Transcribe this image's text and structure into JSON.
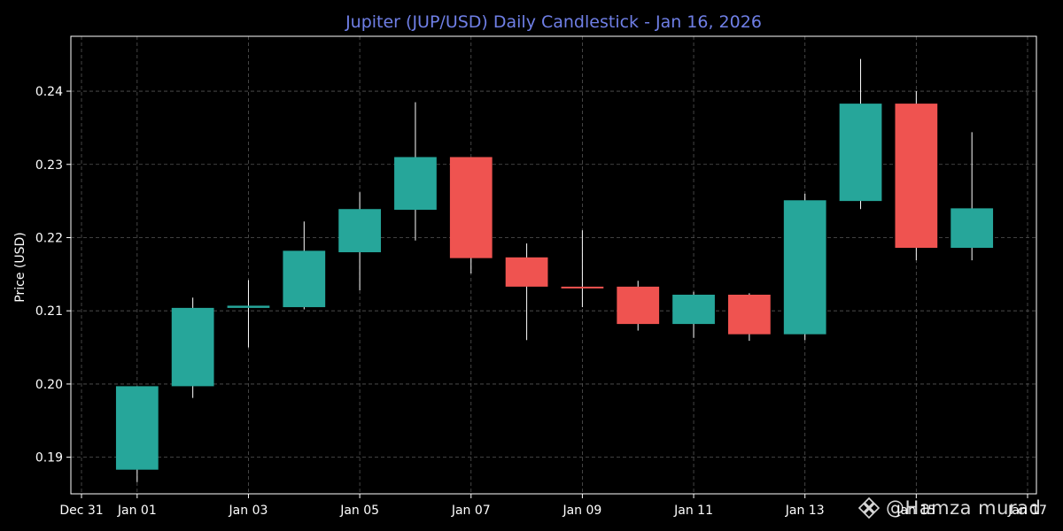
{
  "chart_data": {
    "type": "candlestick",
    "title": "Jupiter (JUP/USD) Daily Candlestick - Jan 16, 2026",
    "xlabel": "",
    "ylabel": "Price (USD)",
    "ylim": [
      0.185,
      0.2475
    ],
    "xlim": [
      "Dec 31",
      "Jan 17"
    ],
    "yticks": [
      "0.19",
      "0.20",
      "0.21",
      "0.22",
      "0.23",
      "0.24"
    ],
    "xticks": [
      "Dec 31",
      "Jan 01",
      "Jan 03",
      "Jan 05",
      "Jan 07",
      "Jan 09",
      "Jan 11",
      "Jan 13",
      "Jan 15",
      "Jan 17"
    ],
    "grid": true,
    "colors": {
      "up": "#26a69a",
      "down": "#ef5350",
      "background": "#000000",
      "grid": "#555555",
      "title": "#6f7fe6",
      "text": "#ffffff"
    },
    "candles": [
      {
        "date": "Jan 01",
        "open": 0.1883,
        "high": 0.1997,
        "low": 0.1866,
        "close": 0.1997
      },
      {
        "date": "Jan 02",
        "open": 0.1997,
        "high": 0.2118,
        "low": 0.1981,
        "close": 0.2104
      },
      {
        "date": "Jan 03",
        "open": 0.2104,
        "high": 0.2142,
        "low": 0.205,
        "close": 0.2107
      },
      {
        "date": "Jan 04",
        "open": 0.2105,
        "high": 0.2222,
        "low": 0.2102,
        "close": 0.2182
      },
      {
        "date": "Jan 05",
        "open": 0.218,
        "high": 0.2262,
        "low": 0.2128,
        "close": 0.2239
      },
      {
        "date": "Jan 06",
        "open": 0.2238,
        "high": 0.2385,
        "low": 0.2196,
        "close": 0.231
      },
      {
        "date": "Jan 07",
        "open": 0.231,
        "high": 0.231,
        "low": 0.2151,
        "close": 0.2172
      },
      {
        "date": "Jan 08",
        "open": 0.2173,
        "high": 0.2192,
        "low": 0.206,
        "close": 0.2133
      },
      {
        "date": "Jan 09",
        "open": 0.2133,
        "high": 0.221,
        "low": 0.2105,
        "close": 0.2132
      },
      {
        "date": "Jan 10",
        "open": 0.2133,
        "high": 0.2141,
        "low": 0.2073,
        "close": 0.2082
      },
      {
        "date": "Jan 11",
        "open": 0.2082,
        "high": 0.2126,
        "low": 0.2063,
        "close": 0.2122
      },
      {
        "date": "Jan 12",
        "open": 0.2122,
        "high": 0.2124,
        "low": 0.2059,
        "close": 0.2068
      },
      {
        "date": "Jan 13",
        "open": 0.2068,
        "high": 0.226,
        "low": 0.206,
        "close": 0.2251
      },
      {
        "date": "Jan 14",
        "open": 0.225,
        "high": 0.2444,
        "low": 0.2239,
        "close": 0.2383
      },
      {
        "date": "Jan 15",
        "open": 0.2383,
        "high": 0.24,
        "low": 0.2169,
        "close": 0.2186
      },
      {
        "date": "Jan 16",
        "open": 0.2186,
        "high": 0.2344,
        "low": 0.2169,
        "close": 0.224
      }
    ]
  },
  "watermark": {
    "text": "@Hamza murad"
  }
}
